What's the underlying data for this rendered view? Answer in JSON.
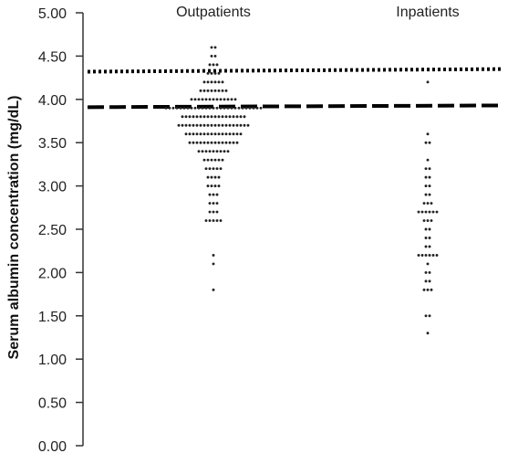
{
  "chart_data": {
    "type": "scatter",
    "title": "",
    "xlabel": "",
    "ylabel": "Serum albumin concentration (mg/dL)",
    "ylim": [
      0,
      5
    ],
    "y_ticks": [
      "0.00",
      "0.50",
      "1.00",
      "1.50",
      "2.00",
      "2.50",
      "3.00",
      "3.50",
      "4.00",
      "4.50",
      "5.00"
    ],
    "categories": [
      "Outpatients",
      "Inpatients"
    ],
    "grid": false,
    "series": [
      {
        "category": "Outpatients",
        "counts": [
          {
            "y": 4.6,
            "n": 2
          },
          {
            "y": 4.5,
            "n": 2
          },
          {
            "y": 4.4,
            "n": 3
          },
          {
            "y": 4.3,
            "n": 4
          },
          {
            "y": 4.2,
            "n": 6
          },
          {
            "y": 4.1,
            "n": 8
          },
          {
            "y": 4.0,
            "n": 13
          },
          {
            "y": 3.9,
            "n": 27
          },
          {
            "y": 3.8,
            "n": 18
          },
          {
            "y": 3.7,
            "n": 20
          },
          {
            "y": 3.6,
            "n": 16
          },
          {
            "y": 3.5,
            "n": 14
          },
          {
            "y": 3.4,
            "n": 9
          },
          {
            "y": 3.3,
            "n": 6
          },
          {
            "y": 3.2,
            "n": 5
          },
          {
            "y": 3.1,
            "n": 4
          },
          {
            "y": 3.0,
            "n": 4
          },
          {
            "y": 2.9,
            "n": 3
          },
          {
            "y": 2.8,
            "n": 3
          },
          {
            "y": 2.7,
            "n": 3
          },
          {
            "y": 2.6,
            "n": 5
          },
          {
            "y": 2.2,
            "n": 1
          },
          {
            "y": 2.1,
            "n": 1
          },
          {
            "y": 1.8,
            "n": 1
          }
        ]
      },
      {
        "category": "Inpatients",
        "counts": [
          {
            "y": 4.2,
            "n": 1
          },
          {
            "y": 3.6,
            "n": 1
          },
          {
            "y": 3.5,
            "n": 2
          },
          {
            "y": 3.3,
            "n": 1
          },
          {
            "y": 3.2,
            "n": 2
          },
          {
            "y": 3.1,
            "n": 2
          },
          {
            "y": 3.0,
            "n": 2
          },
          {
            "y": 2.9,
            "n": 2
          },
          {
            "y": 2.8,
            "n": 3
          },
          {
            "y": 2.7,
            "n": 6
          },
          {
            "y": 2.6,
            "n": 3
          },
          {
            "y": 2.5,
            "n": 2
          },
          {
            "y": 2.4,
            "n": 2
          },
          {
            "y": 2.3,
            "n": 2
          },
          {
            "y": 2.2,
            "n": 6
          },
          {
            "y": 2.1,
            "n": 1
          },
          {
            "y": 2.0,
            "n": 2
          },
          {
            "y": 1.9,
            "n": 2
          },
          {
            "y": 1.8,
            "n": 3
          },
          {
            "y": 1.5,
            "n": 2
          },
          {
            "y": 1.3,
            "n": 1
          }
        ]
      }
    ],
    "reference_lines": [
      {
        "style": "dotted",
        "y_start": 4.32,
        "y_end": 4.35
      },
      {
        "style": "dashed",
        "y_start": 3.91,
        "y_end": 3.93
      }
    ],
    "colors": {
      "point": "#222222",
      "axis": "#333333",
      "reference_line": "#000000"
    }
  }
}
